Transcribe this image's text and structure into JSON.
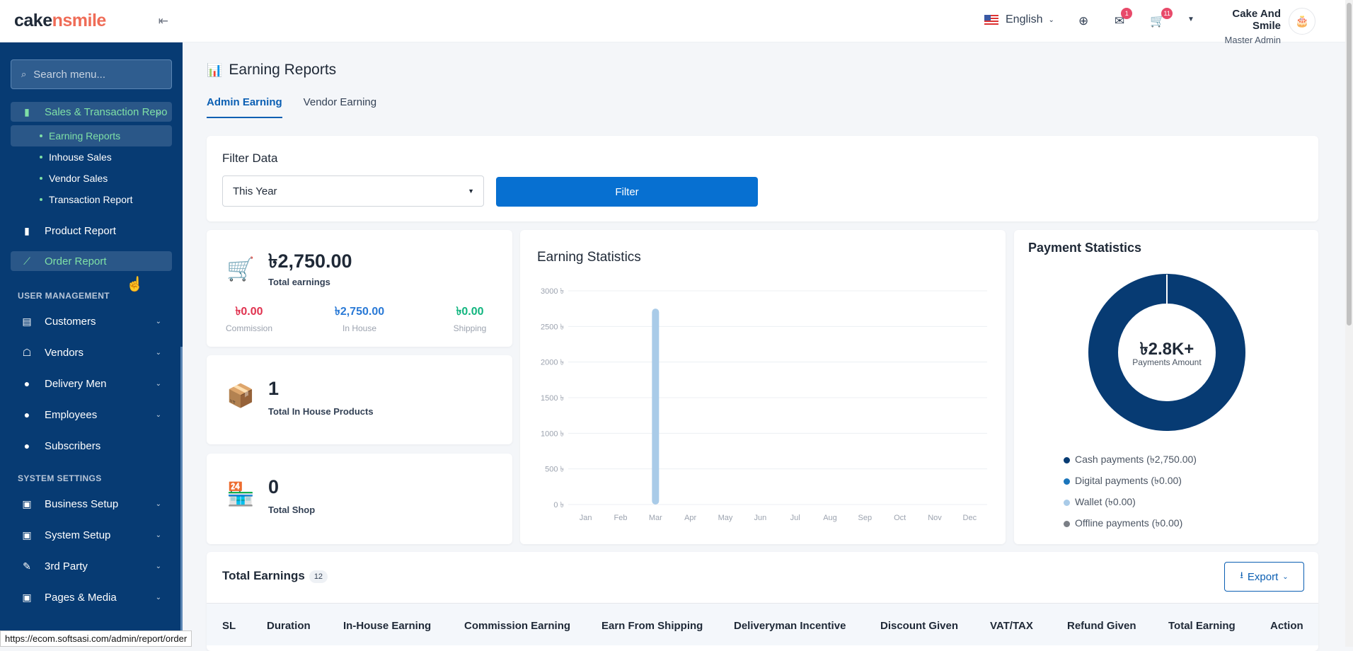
{
  "brand": {
    "logo_a": "cake",
    "logo_b": "nsmile"
  },
  "sidebar": {
    "search_placeholder": "Search menu...",
    "group_label": "Sales & Transaction Repo",
    "sub_items": [
      "Earning Reports",
      "Inhouse Sales",
      "Vendor Sales",
      "Transaction Report"
    ],
    "items_top": [
      "Product Report",
      "Order Report"
    ],
    "section_user": "USER MANAGEMENT",
    "items_user": [
      "Customers",
      "Vendors",
      "Delivery Men",
      "Employees",
      "Subscribers"
    ],
    "section_system": "SYSTEM SETTINGS",
    "items_system": [
      "Business Setup",
      "System Setup",
      "3rd Party",
      "Pages & Media"
    ]
  },
  "topbar": {
    "language": "English",
    "mail_count": "1",
    "cart_count": "11",
    "user_name": "Cake And Smile",
    "user_role": "Master Admin"
  },
  "page": {
    "title": "Earning Reports",
    "tabs": [
      "Admin Earning",
      "Vendor Earning"
    ]
  },
  "filter": {
    "title": "Filter Data",
    "select_value": "This Year",
    "button": "Filter"
  },
  "stats": {
    "total_earnings": "৳2,750.00",
    "total_earnings_label": "Total earnings",
    "commission": "৳0.00",
    "commission_label": "Commission",
    "in_house": "৳2,750.00",
    "in_house_label": "In House",
    "shipping": "৳0.00",
    "shipping_label": "Shipping",
    "products": "1",
    "products_label": "Total In House Products",
    "shops": "0",
    "shops_label": "Total Shop"
  },
  "earning_chart": {
    "title": "Earning Statistics"
  },
  "chart_data": {
    "type": "bar",
    "categories": [
      "Jan",
      "Feb",
      "Mar",
      "Apr",
      "May",
      "Jun",
      "Jul",
      "Aug",
      "Sep",
      "Oct",
      "Nov",
      "Dec"
    ],
    "values": [
      0,
      0,
      2750,
      0,
      0,
      0,
      0,
      0,
      0,
      0,
      0,
      0
    ],
    "ylim": [
      0,
      3000
    ],
    "yticks": [
      "3000 ৳",
      "2500 ৳",
      "2000 ৳",
      "1500 ৳",
      "1000 ৳",
      "500 ৳",
      "0 ৳"
    ],
    "color": "#a9cbe8"
  },
  "payment": {
    "title": "Payment Statistics",
    "center_value": "৳2.8K+",
    "center_label": "Payments Amount",
    "legend": [
      "Cash payments (৳2,750.00)",
      "Digital payments (৳0.00)",
      "Wallet (৳0.00)",
      "Offline payments (৳0.00)"
    ],
    "colors": [
      "#073b73",
      "#1b75bb",
      "#a9cbe8",
      "#7b7f86"
    ],
    "values": [
      2750,
      0,
      0,
      0
    ]
  },
  "total": {
    "title": "Total Earnings",
    "count": "12",
    "export": "Export",
    "columns": [
      "SL",
      "Duration",
      "In-House Earning",
      "Commission Earning",
      "Earn From Shipping",
      "Deliveryman Incentive",
      "Discount Given",
      "VAT/TAX",
      "Refund Given",
      "Total Earning",
      "Action"
    ]
  },
  "status_url": "https://ecom.softsasi.com/admin/report/order"
}
